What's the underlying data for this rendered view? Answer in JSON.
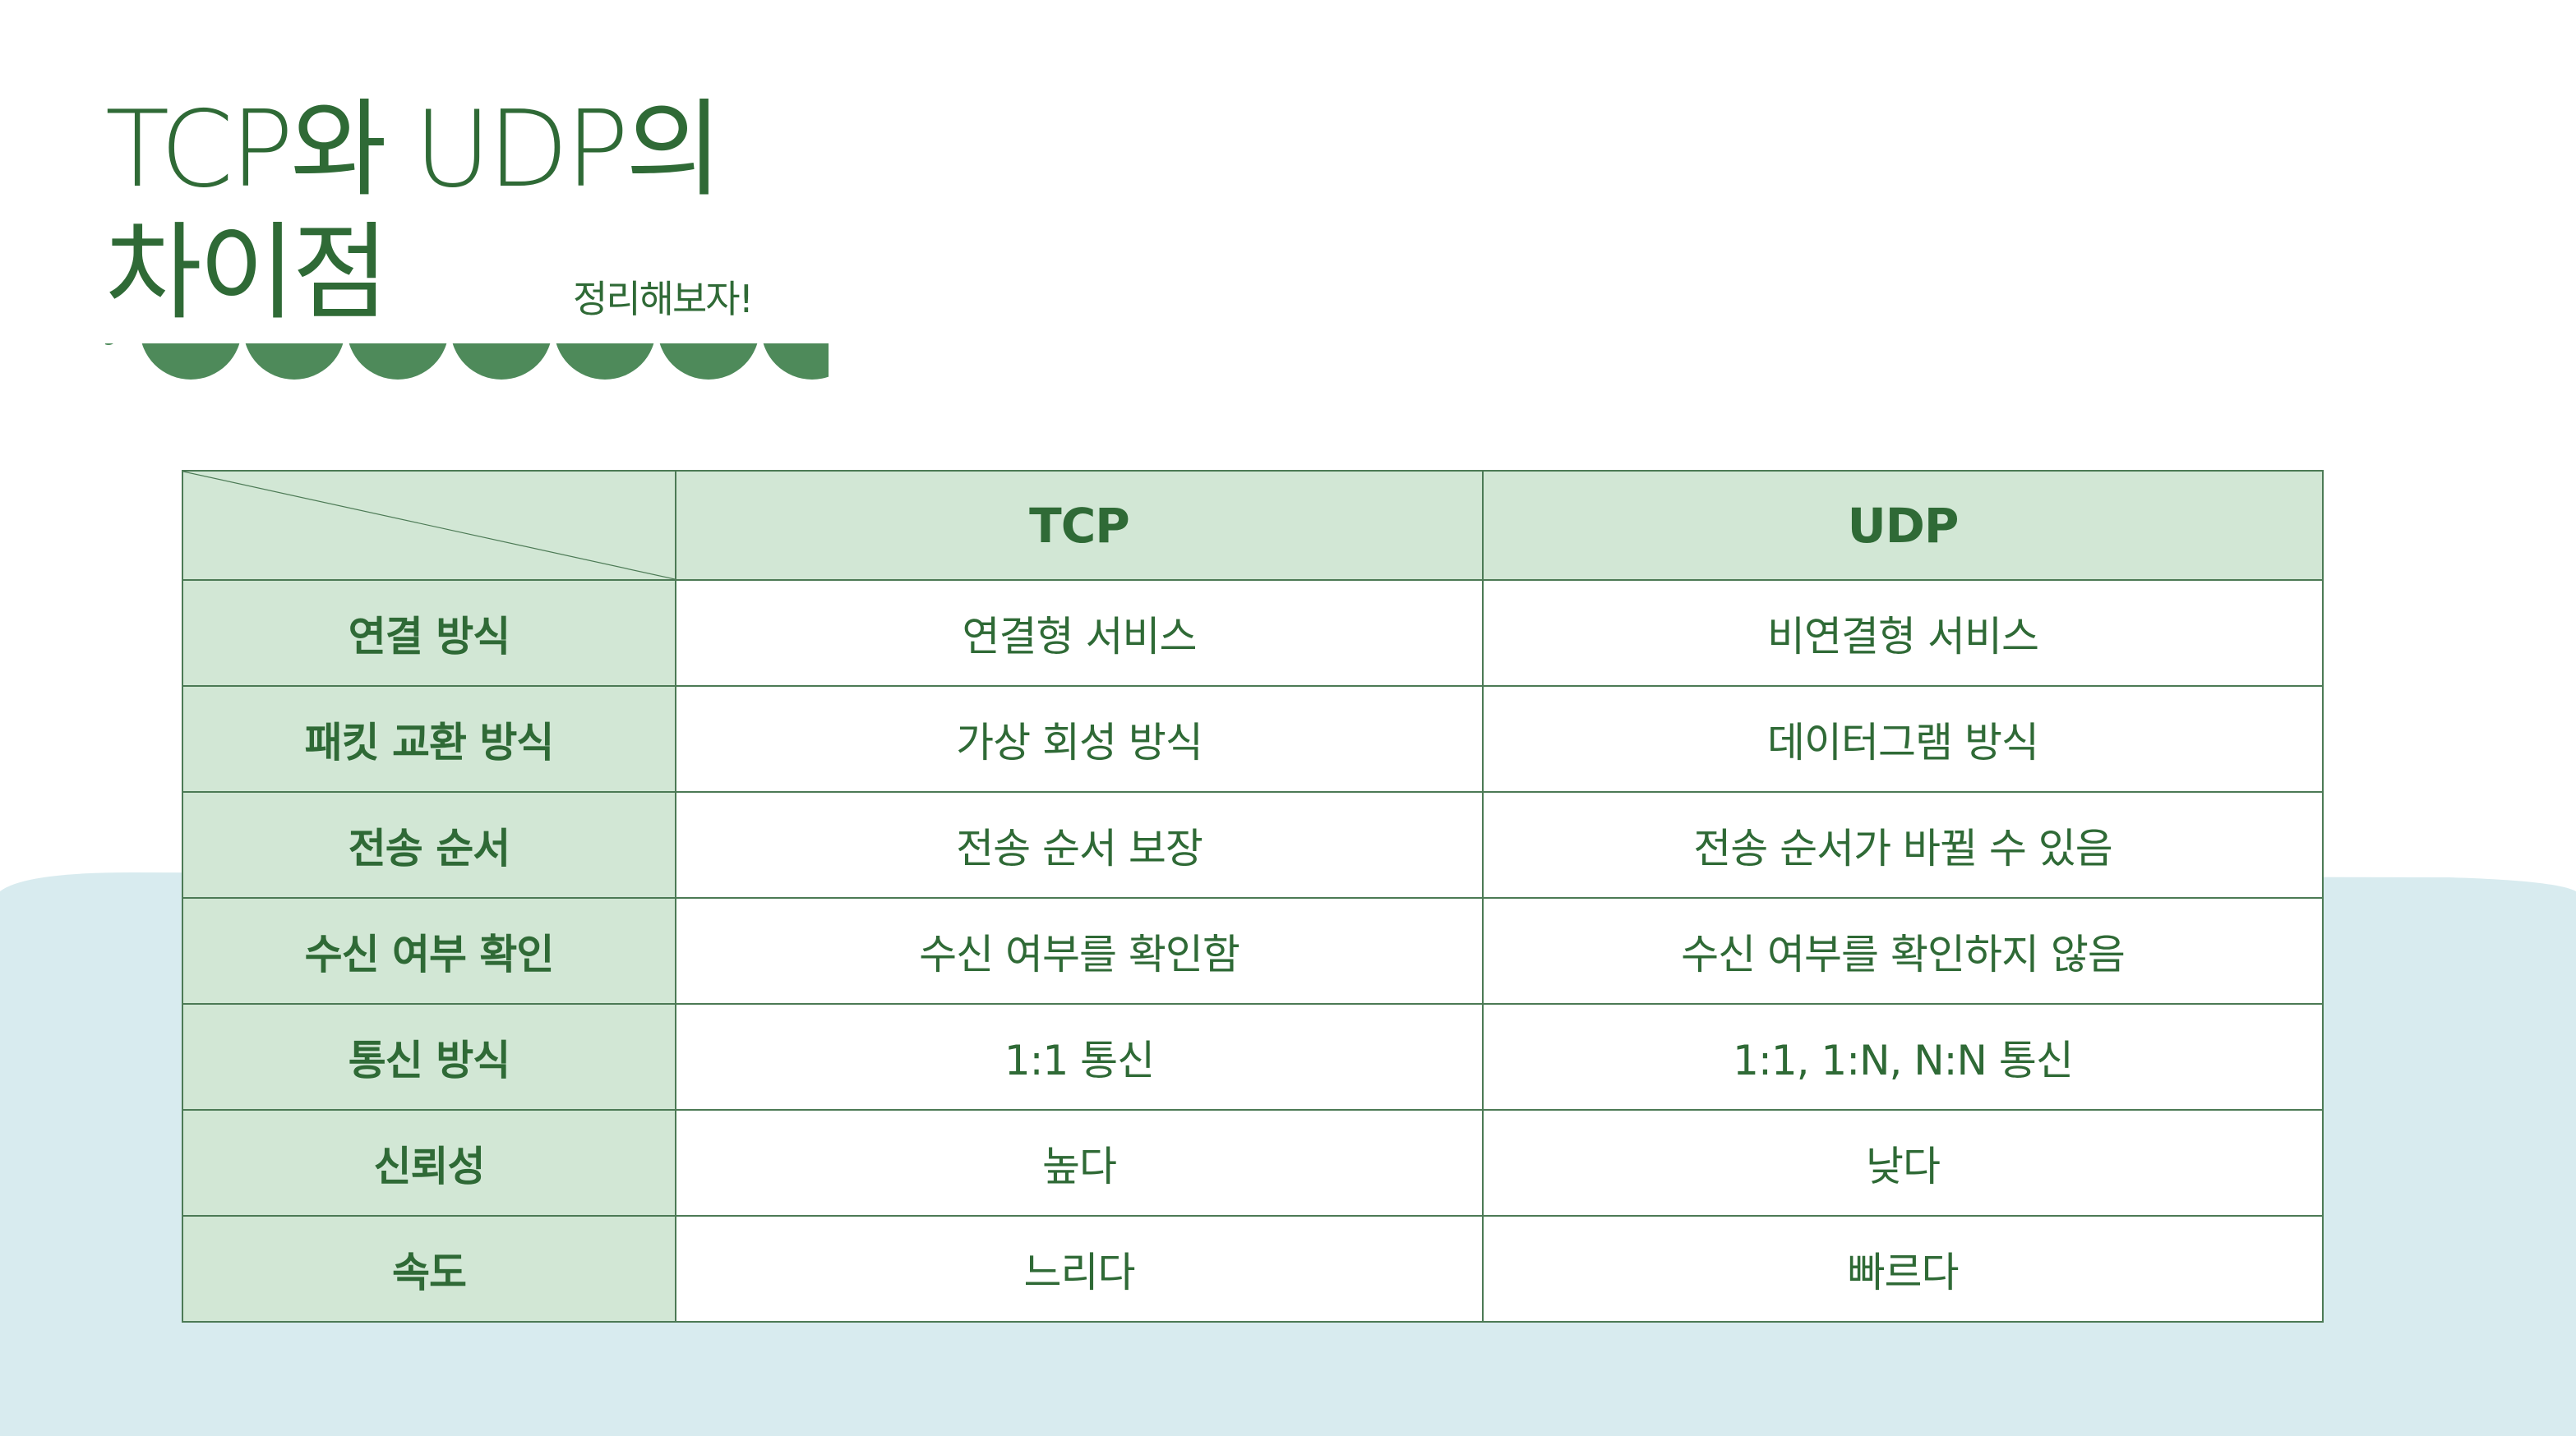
{
  "title": {
    "line1": "TCP와 UDP의",
    "line2": "차이점"
  },
  "subtitle": "정리해보자!",
  "colors": {
    "accent": "#2f6a36",
    "header_bg": "#d2e7d5",
    "wave_bg": "#d8ebef",
    "border": "#4c7a55"
  },
  "table": {
    "columns": [
      "TCP",
      "UDP"
    ],
    "rows": [
      {
        "label": "연결 방식",
        "tcp": "연결형 서비스",
        "udp": "비연결형 서비스"
      },
      {
        "label": "패킷 교환 방식",
        "tcp": "가상 회성 방식",
        "udp": "데이터그램 방식"
      },
      {
        "label": "전송 순서",
        "tcp": "전송 순서 보장",
        "udp": "전송 순서가 바뀔 수 있음"
      },
      {
        "label": "수신 여부 확인",
        "tcp": "수신 여부를 확인함",
        "udp": "수신 여부를 확인하지 않음"
      },
      {
        "label": "통신 방식",
        "tcp": "1:1 통신",
        "udp": "1:1, 1:N, N:N 통신"
      },
      {
        "label": "신뢰성",
        "tcp": "높다",
        "udp": "낮다"
      },
      {
        "label": "속도",
        "tcp": "느리다",
        "udp": "빠르다"
      }
    ]
  }
}
